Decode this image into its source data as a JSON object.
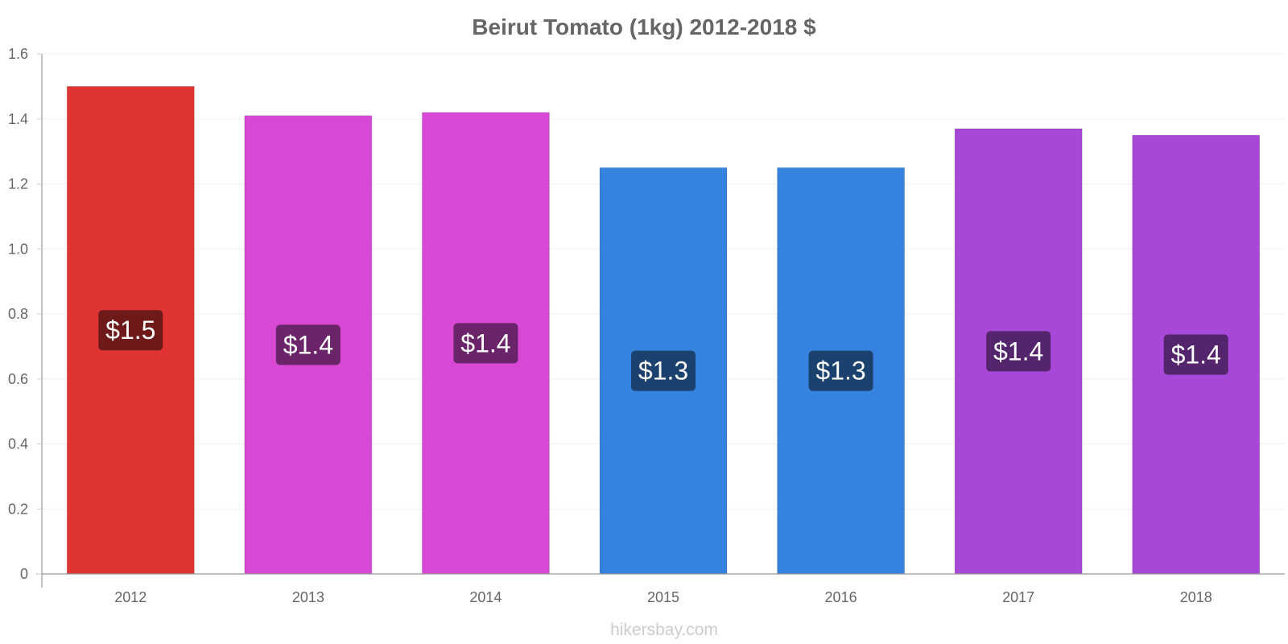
{
  "chart_data": {
    "type": "bar",
    "title": "Beirut Tomato (1kg) 2012-2018 $",
    "categories": [
      "2012",
      "2013",
      "2014",
      "2015",
      "2016",
      "2017",
      "2018"
    ],
    "values": [
      1.5,
      1.41,
      1.42,
      1.25,
      1.25,
      1.37,
      1.35
    ],
    "data_labels": [
      "$1.5",
      "$1.4",
      "$1.4",
      "$1.3",
      "$1.3",
      "$1.4",
      "$1.4"
    ],
    "bar_colors": [
      "#e03434",
      "#d749d4",
      "#d749d4",
      "#3683df",
      "#3683df",
      "#a848d8",
      "#a848d8"
    ],
    "label_bg_colors": [
      "#6e1a1a",
      "#6b246a",
      "#6b246a",
      "#1b416f",
      "#1b416f",
      "#54246c",
      "#54246c"
    ],
    "ylim": [
      0,
      1.6
    ],
    "yticks": [
      0,
      0.2,
      0.4,
      0.6,
      0.8,
      1.0,
      1.2,
      1.4,
      1.6
    ],
    "ytick_labels": [
      "0",
      "0.2",
      "0.4",
      "0.6",
      "0.8",
      "1.0",
      "1.2",
      "1.4",
      "1.6"
    ],
    "xlabel": "",
    "ylabel": "",
    "grid": true,
    "legend": "none"
  },
  "watermark": "hikersbay.com"
}
